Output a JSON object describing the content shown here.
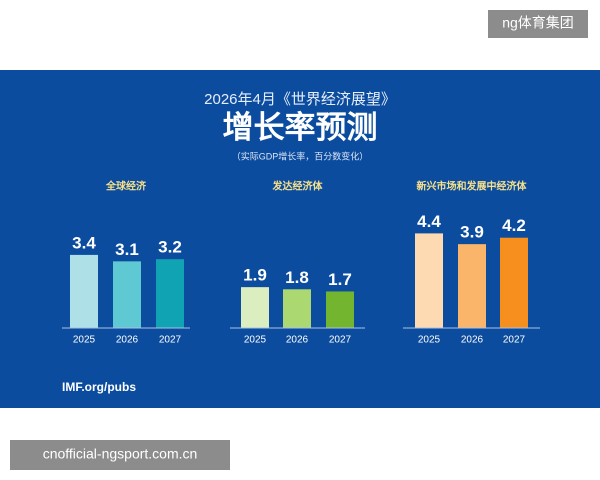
{
  "watermark": "ng体育集团",
  "header": {
    "date_title": "2026年4月《世界经济展望》",
    "title": "增长率预测",
    "subtitle": "（实际GDP增长率，百分数变化）"
  },
  "chart_data": [
    {
      "type": "bar",
      "title": "全球经济",
      "categories": [
        "2025",
        "2026",
        "2027"
      ],
      "values": [
        3.4,
        3.1,
        3.2
      ],
      "colors": [
        "#aee0e8",
        "#5ec8d3",
        "#0fa3b4"
      ]
    },
    {
      "type": "bar",
      "title": "发达经济体",
      "categories": [
        "2025",
        "2026",
        "2027"
      ],
      "values": [
        1.9,
        1.8,
        1.7
      ],
      "colors": [
        "#dbeebf",
        "#acd872",
        "#73b52f"
      ]
    },
    {
      "type": "bar",
      "title": "新兴市场和发展中经济体",
      "categories": [
        "2025",
        "2026",
        "2027"
      ],
      "values": [
        4.4,
        3.9,
        4.2
      ],
      "colors": [
        "#fddab2",
        "#fbb56a",
        "#f78f1e"
      ]
    }
  ],
  "footer": "IMF.org/pubs",
  "url": "cnofficial-ngsport.com.cn"
}
